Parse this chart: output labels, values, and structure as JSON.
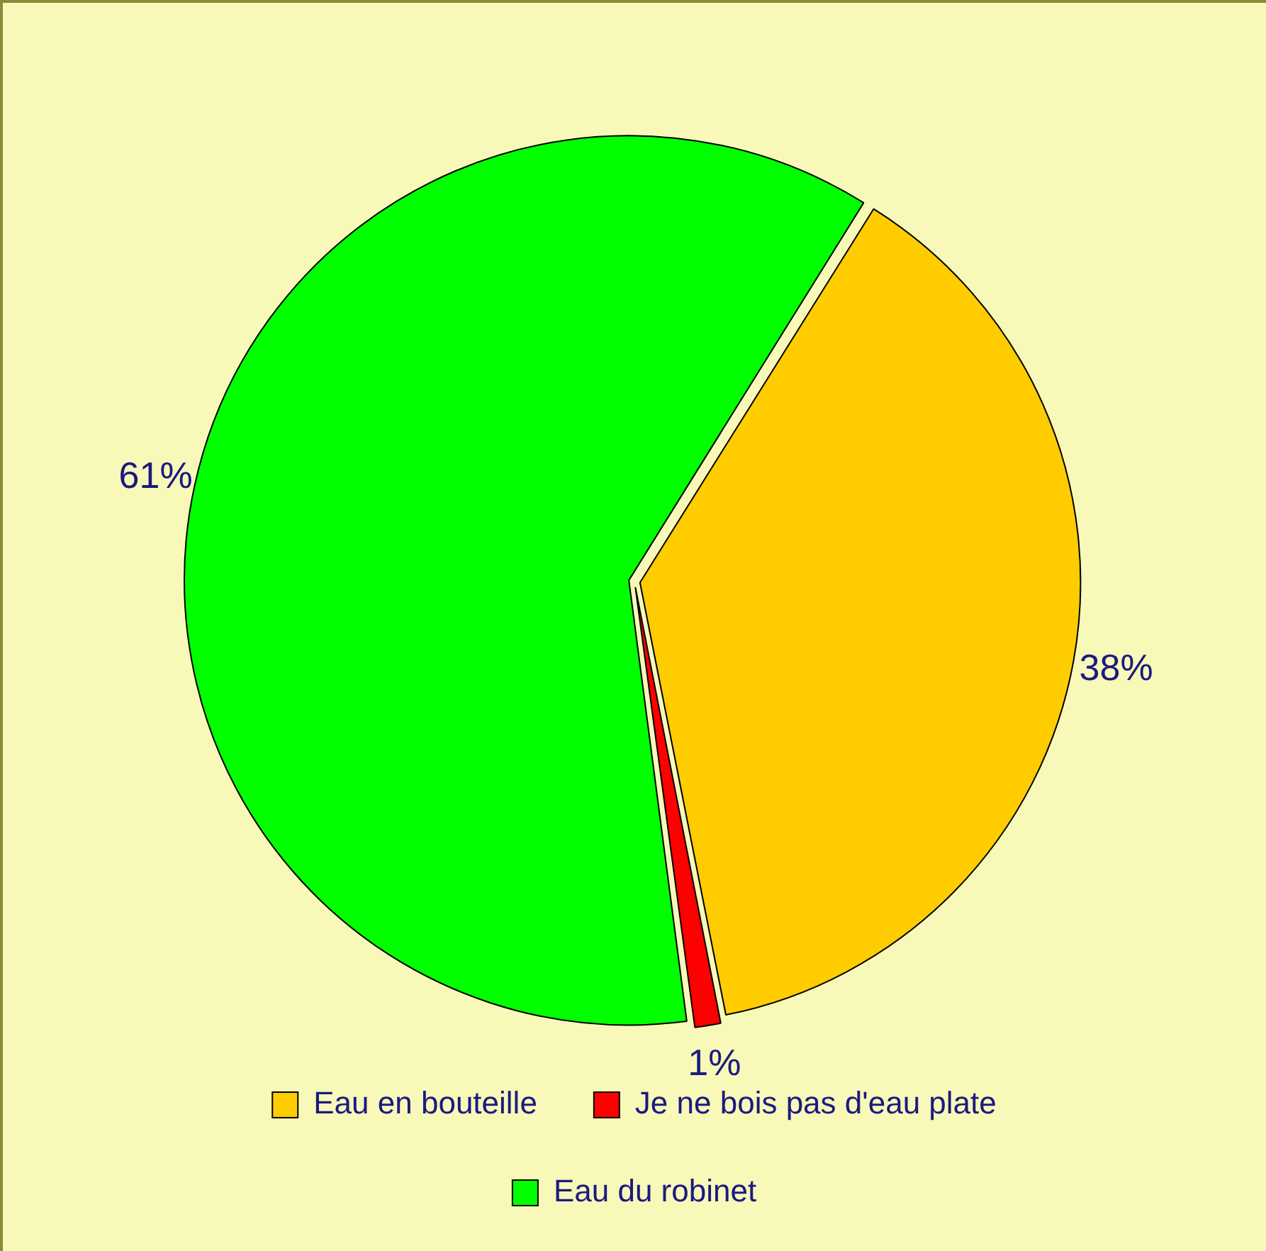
{
  "chart_data": {
    "type": "pie",
    "categories": [
      "Eau en bouteille",
      "Je ne bois pas d'eau plate",
      "Eau du robinet"
    ],
    "values": [
      38,
      1,
      61
    ],
    "colors": [
      "#ffcc00",
      "#ff0000",
      "#00ff00"
    ],
    "value_labels": [
      "38%",
      "1%",
      "61%"
    ],
    "legend": "bottom"
  }
}
